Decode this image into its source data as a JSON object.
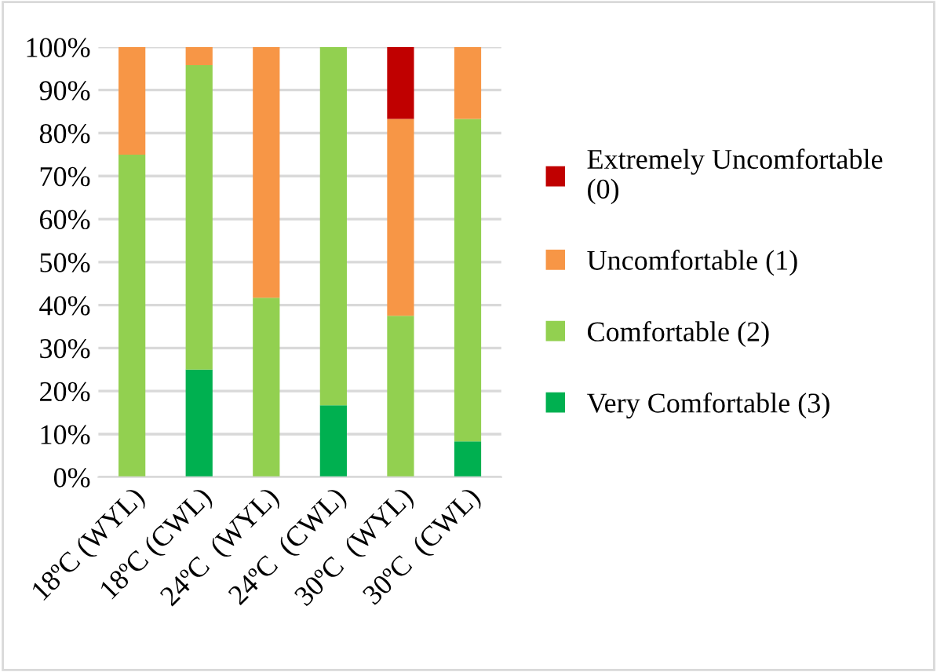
{
  "chart_data": {
    "type": "bar",
    "stacked": true,
    "categories": [
      "18ºC (WYL)",
      "18ºC (CWL)",
      "24ºC  (WYL)",
      "24ºC  (CWL)",
      "30ºC  (WYL)",
      "30ºC  (CWL)"
    ],
    "series": [
      {
        "name": "Very Comfortable (3)",
        "color": "#00b050",
        "values": [
          0,
          25,
          0,
          16.7,
          0,
          8.3
        ]
      },
      {
        "name": "Comfortable (2)",
        "color": "#92d050",
        "values": [
          75,
          70.8,
          41.7,
          83.3,
          37.5,
          75
        ]
      },
      {
        "name": "Uncomfortable (1)",
        "color": "#f79646",
        "values": [
          25,
          4.2,
          58.3,
          0,
          45.8,
          16.7
        ]
      },
      {
        "name": "Extremely Uncomfortable (0)",
        "color": "#c00000",
        "values": [
          0,
          0,
          0,
          0,
          16.7,
          0
        ]
      }
    ],
    "ylim": [
      0,
      100
    ],
    "yticks": [
      {
        "value": 0,
        "label": "0%"
      },
      {
        "value": 10,
        "label": "10%"
      },
      {
        "value": 20,
        "label": "20%"
      },
      {
        "value": 30,
        "label": "30%"
      },
      {
        "value": 40,
        "label": "40%"
      },
      {
        "value": 50,
        "label": "50%"
      },
      {
        "value": 60,
        "label": "60%"
      },
      {
        "value": 70,
        "label": "70%"
      },
      {
        "value": 80,
        "label": "80%"
      },
      {
        "value": 90,
        "label": "90%"
      },
      {
        "value": 100,
        "label": "100%"
      }
    ],
    "grid": "y",
    "legend": "right"
  }
}
